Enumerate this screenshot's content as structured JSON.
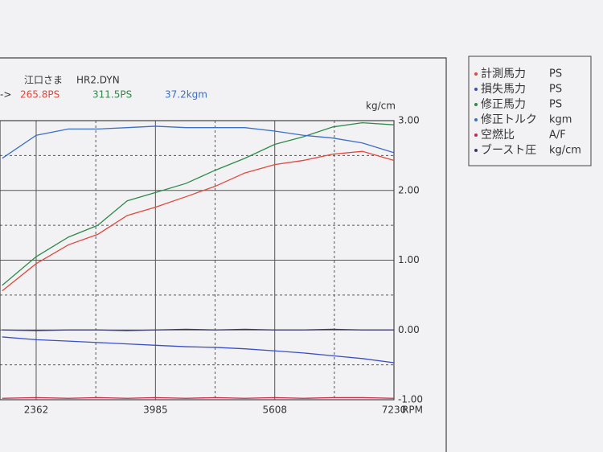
{
  "header": {
    "name": "江口さま",
    "file": "HR2.DYN",
    "arrow": "->",
    "readings": [
      {
        "text": "265.8PS",
        "color": "#e0483c"
      },
      {
        "text": "311.5PS",
        "color": "#2e8a4a"
      },
      {
        "text": "37.2kgm",
        "color": "#3a6ec8"
      }
    ]
  },
  "chart_data": {
    "type": "line",
    "y_axis_label": "kg/cm",
    "x_axis_label": "RPM",
    "x": [
      1900,
      2362,
      2800,
      3200,
      3600,
      3985,
      4400,
      4800,
      5200,
      5608,
      6000,
      6400,
      6800,
      7230
    ],
    "xlim": [
      1870,
      7230
    ],
    "xticks": [
      2362,
      3985,
      5608,
      7230
    ],
    "ylim": [
      -1,
      3
    ],
    "yticks": [
      {
        "value": -1,
        "label": "-1.00"
      },
      {
        "value": 0,
        "label": "0.00"
      },
      {
        "value": 1,
        "label": "1.00"
      },
      {
        "value": 2,
        "label": "2.00"
      },
      {
        "value": 3,
        "label": "3.00"
      }
    ],
    "grid": true,
    "series": [
      {
        "name": "計測馬力",
        "unit": "PS",
        "color": "#e0483c",
        "values": [
          0.56,
          0.95,
          1.22,
          1.37,
          1.64,
          1.76,
          1.91,
          2.06,
          2.25,
          2.37,
          2.43,
          2.52,
          2.56,
          2.43
        ]
      },
      {
        "name": "損失馬力",
        "unit": "PS",
        "color": "#3a4ec8",
        "values": [
          -0.1,
          -0.14,
          -0.16,
          -0.18,
          -0.2,
          -0.22,
          -0.24,
          -0.25,
          -0.27,
          -0.3,
          -0.33,
          -0.37,
          -0.41,
          -0.47
        ]
      },
      {
        "name": "修正馬力",
        "unit": "PS",
        "color": "#2e8a4a",
        "values": [
          0.64,
          1.05,
          1.33,
          1.5,
          1.85,
          1.97,
          2.1,
          2.29,
          2.46,
          2.66,
          2.77,
          2.91,
          2.97,
          2.94
        ]
      },
      {
        "name": "修正トルク",
        "unit": "kgm",
        "color": "#3a6ec8",
        "values": [
          2.46,
          2.79,
          2.88,
          2.88,
          2.9,
          2.92,
          2.9,
          2.9,
          2.9,
          2.85,
          2.79,
          2.75,
          2.68,
          2.54
        ]
      },
      {
        "name": "空燃比",
        "unit": "A/F",
        "color": "#c8284a",
        "values": [
          -0.98,
          -0.97,
          -0.98,
          -0.97,
          -0.98,
          -0.97,
          -0.98,
          -0.97,
          -0.98,
          -0.97,
          -0.98,
          -0.97,
          -0.97,
          -0.98
        ]
      },
      {
        "name": "ブースト圧",
        "unit": "kg/cm",
        "color": "#3a3a6a",
        "values": [
          0.0,
          -0.01,
          0.0,
          0.0,
          -0.01,
          0.0,
          0.01,
          0.0,
          0.01,
          0.0,
          0.0,
          0.01,
          0.0,
          0.0
        ]
      }
    ]
  }
}
